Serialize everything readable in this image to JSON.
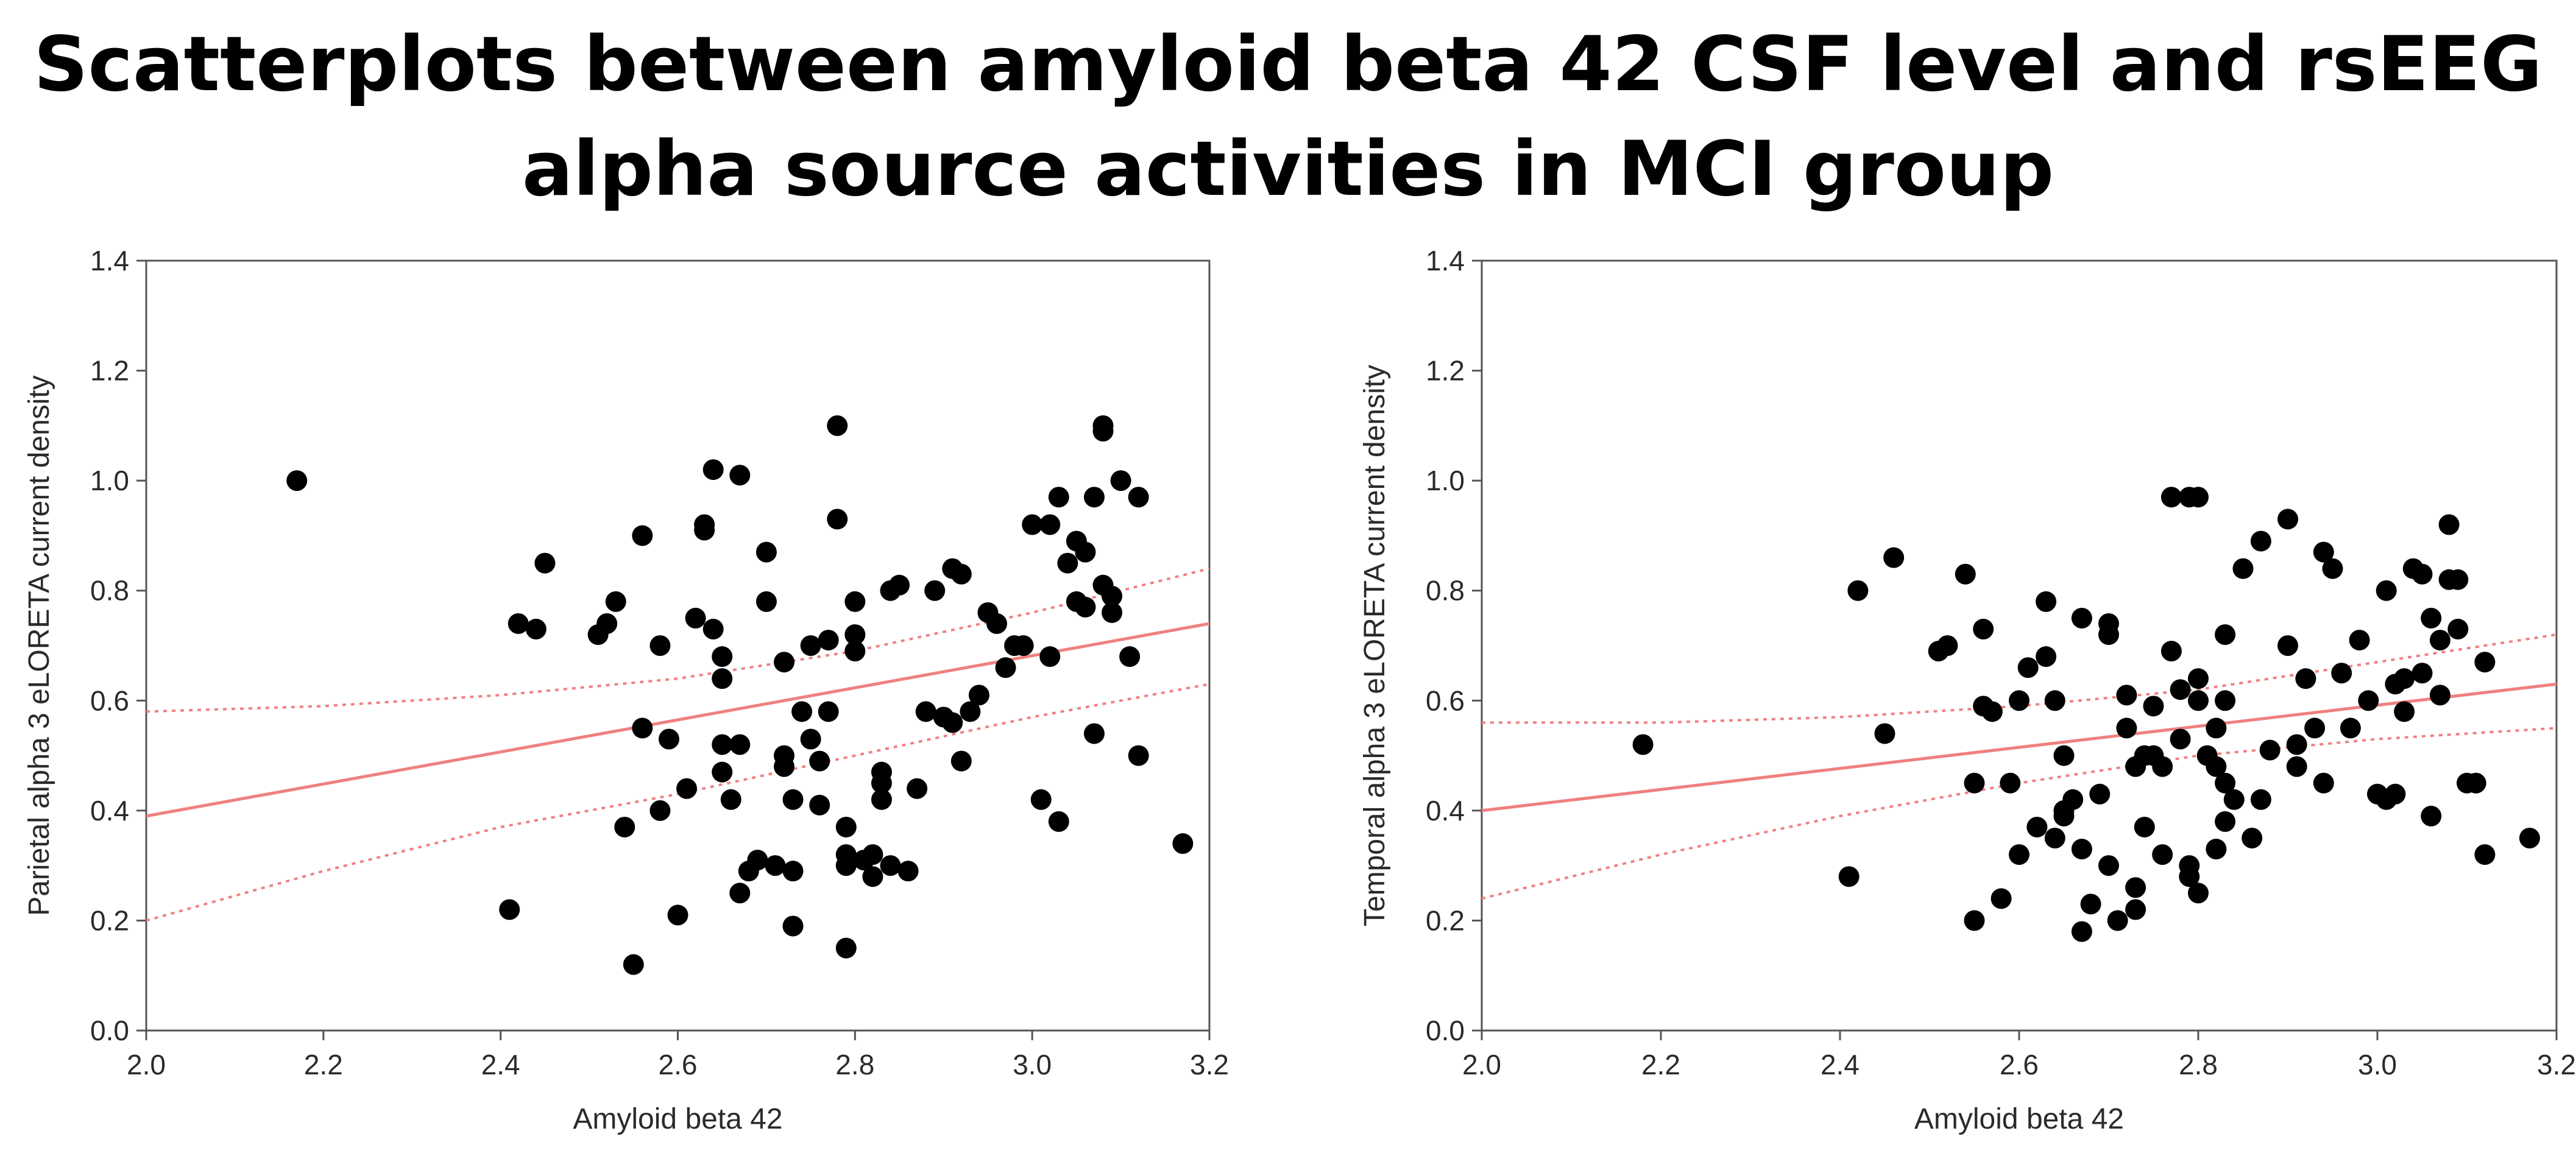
{
  "title_line1": "Scatterplots between amyloid beta 42 CSF level and rsEEG",
  "title_line2": "alpha source activities in MCI group",
  "colors": {
    "points": "#000000",
    "fit": "#f08080",
    "axis": "#555555"
  },
  "chart_data": [
    {
      "type": "scatter",
      "xlabel": "Amyloid beta 42",
      "ylabel": "Parietal alpha 3 eLORETA current density",
      "xlim": [
        2.0,
        3.2
      ],
      "ylim": [
        0.0,
        1.4
      ],
      "xticks": [
        2.0,
        2.2,
        2.4,
        2.6,
        2.8,
        3.0,
        3.2
      ],
      "yticks": [
        0.0,
        0.2,
        0.4,
        0.6,
        0.8,
        1.0,
        1.2,
        1.4
      ],
      "xtick_labels": [
        "2.0",
        "2.2",
        "2.4",
        "2.6",
        "2.8",
        "3.0",
        "3.2"
      ],
      "ytick_labels": [
        "0.0",
        "0.2",
        "0.4",
        "0.6",
        "0.8",
        "1.0",
        "1.2",
        "1.4"
      ],
      "grid": false,
      "regression": {
        "x": [
          2.0,
          3.2
        ],
        "y": [
          0.39,
          0.74
        ]
      },
      "confidence_band": {
        "x": [
          2.0,
          2.2,
          2.4,
          2.6,
          2.8,
          3.0,
          3.2
        ],
        "upper": [
          0.58,
          0.59,
          0.61,
          0.64,
          0.69,
          0.76,
          0.84
        ],
        "lower": [
          0.2,
          0.29,
          0.37,
          0.43,
          0.5,
          0.57,
          0.63
        ]
      },
      "points": [
        [
          2.17,
          1.0
        ],
        [
          2.41,
          0.22
        ],
        [
          2.42,
          0.74
        ],
        [
          2.44,
          0.73
        ],
        [
          2.45,
          0.85
        ],
        [
          2.51,
          0.72
        ],
        [
          2.52,
          0.74
        ],
        [
          2.53,
          0.78
        ],
        [
          2.54,
          0.37
        ],
        [
          2.55,
          0.12
        ],
        [
          2.56,
          0.9
        ],
        [
          2.56,
          0.55
        ],
        [
          2.58,
          0.7
        ],
        [
          2.58,
          0.4
        ],
        [
          2.59,
          0.53
        ],
        [
          2.6,
          0.21
        ],
        [
          2.61,
          0.44
        ],
        [
          2.62,
          0.75
        ],
        [
          2.63,
          0.91
        ],
        [
          2.63,
          0.92
        ],
        [
          2.64,
          1.02
        ],
        [
          2.64,
          0.73
        ],
        [
          2.65,
          0.64
        ],
        [
          2.65,
          0.68
        ],
        [
          2.65,
          0.52
        ],
        [
          2.65,
          0.47
        ],
        [
          2.66,
          0.42
        ],
        [
          2.67,
          1.01
        ],
        [
          2.67,
          0.52
        ],
        [
          2.67,
          0.25
        ],
        [
          2.68,
          0.29
        ],
        [
          2.69,
          0.31
        ],
        [
          2.7,
          0.87
        ],
        [
          2.7,
          0.78
        ],
        [
          2.71,
          0.3
        ],
        [
          2.72,
          0.67
        ],
        [
          2.72,
          0.5
        ],
        [
          2.72,
          0.48
        ],
        [
          2.73,
          0.42
        ],
        [
          2.73,
          0.19
        ],
        [
          2.73,
          0.29
        ],
        [
          2.74,
          0.58
        ],
        [
          2.75,
          0.7
        ],
        [
          2.75,
          0.53
        ],
        [
          2.76,
          0.49
        ],
        [
          2.76,
          0.41
        ],
        [
          2.77,
          0.58
        ],
        [
          2.77,
          0.71
        ],
        [
          2.78,
          1.1
        ],
        [
          2.78,
          0.93
        ],
        [
          2.79,
          0.37
        ],
        [
          2.79,
          0.32
        ],
        [
          2.79,
          0.3
        ],
        [
          2.79,
          0.15
        ],
        [
          2.8,
          0.72
        ],
        [
          2.8,
          0.69
        ],
        [
          2.8,
          0.78
        ],
        [
          2.81,
          0.31
        ],
        [
          2.82,
          0.32
        ],
        [
          2.82,
          0.28
        ],
        [
          2.83,
          0.42
        ],
        [
          2.83,
          0.45
        ],
        [
          2.83,
          0.47
        ],
        [
          2.84,
          0.8
        ],
        [
          2.84,
          0.3
        ],
        [
          2.85,
          0.81
        ],
        [
          2.86,
          0.29
        ],
        [
          2.87,
          0.44
        ],
        [
          2.88,
          0.58
        ],
        [
          2.89,
          0.8
        ],
        [
          2.9,
          0.57
        ],
        [
          2.91,
          0.84
        ],
        [
          2.91,
          0.56
        ],
        [
          2.92,
          0.83
        ],
        [
          2.92,
          0.49
        ],
        [
          2.93,
          0.58
        ],
        [
          2.94,
          0.61
        ],
        [
          2.95,
          0.76
        ],
        [
          2.96,
          0.74
        ],
        [
          2.97,
          0.66
        ],
        [
          2.98,
          0.7
        ],
        [
          2.99,
          0.7
        ],
        [
          3.0,
          0.92
        ],
        [
          3.01,
          0.42
        ],
        [
          3.02,
          0.92
        ],
        [
          3.02,
          0.68
        ],
        [
          3.03,
          0.97
        ],
        [
          3.03,
          0.38
        ],
        [
          3.04,
          0.85
        ],
        [
          3.05,
          0.89
        ],
        [
          3.05,
          0.78
        ],
        [
          3.06,
          0.77
        ],
        [
          3.06,
          0.87
        ],
        [
          3.07,
          0.97
        ],
        [
          3.07,
          0.54
        ],
        [
          3.08,
          1.09
        ],
        [
          3.08,
          1.1
        ],
        [
          3.08,
          0.81
        ],
        [
          3.09,
          0.79
        ],
        [
          3.09,
          0.76
        ],
        [
          3.1,
          1.0
        ],
        [
          3.11,
          0.68
        ],
        [
          3.12,
          0.97
        ],
        [
          3.12,
          0.5
        ],
        [
          3.17,
          0.34
        ]
      ]
    },
    {
      "type": "scatter",
      "xlabel": "Amyloid beta 42",
      "ylabel": "Temporal alpha 3 eLORETA current density",
      "xlim": [
        2.0,
        3.2
      ],
      "ylim": [
        0.0,
        1.4
      ],
      "xticks": [
        2.0,
        2.2,
        2.4,
        2.6,
        2.8,
        3.0,
        3.2
      ],
      "yticks": [
        0.0,
        0.2,
        0.4,
        0.6,
        0.8,
        1.0,
        1.2,
        1.4
      ],
      "xtick_labels": [
        "2.0",
        "2.2",
        "2.4",
        "2.6",
        "2.8",
        "3.0",
        "3.2"
      ],
      "ytick_labels": [
        "0.0",
        "0.2",
        "0.4",
        "0.6",
        "0.8",
        "1.0",
        "1.2",
        "1.4"
      ],
      "grid": false,
      "regression": {
        "x": [
          2.0,
          3.2
        ],
        "y": [
          0.4,
          0.63
        ]
      },
      "confidence_band": {
        "x": [
          2.0,
          2.2,
          2.4,
          2.6,
          2.8,
          3.0,
          3.2
        ],
        "upper": [
          0.56,
          0.56,
          0.57,
          0.59,
          0.62,
          0.67,
          0.72
        ],
        "lower": [
          0.24,
          0.32,
          0.39,
          0.45,
          0.5,
          0.53,
          0.55
        ]
      },
      "points": [
        [
          2.18,
          0.52
        ],
        [
          2.41,
          0.28
        ],
        [
          2.42,
          0.8
        ],
        [
          2.45,
          0.54
        ],
        [
          2.46,
          0.86
        ],
        [
          2.51,
          0.69
        ],
        [
          2.52,
          0.7
        ],
        [
          2.54,
          0.83
        ],
        [
          2.55,
          0.45
        ],
        [
          2.55,
          0.2
        ],
        [
          2.56,
          0.73
        ],
        [
          2.56,
          0.59
        ],
        [
          2.57,
          0.58
        ],
        [
          2.58,
          0.24
        ],
        [
          2.59,
          0.45
        ],
        [
          2.6,
          0.6
        ],
        [
          2.6,
          0.32
        ],
        [
          2.61,
          0.66
        ],
        [
          2.62,
          0.37
        ],
        [
          2.63,
          0.78
        ],
        [
          2.63,
          0.68
        ],
        [
          2.64,
          0.6
        ],
        [
          2.64,
          0.35
        ],
        [
          2.65,
          0.4
        ],
        [
          2.65,
          0.5
        ],
        [
          2.65,
          0.39
        ],
        [
          2.66,
          0.42
        ],
        [
          2.67,
          0.75
        ],
        [
          2.67,
          0.18
        ],
        [
          2.67,
          0.33
        ],
        [
          2.68,
          0.23
        ],
        [
          2.69,
          0.43
        ],
        [
          2.7,
          0.74
        ],
        [
          2.7,
          0.72
        ],
        [
          2.7,
          0.3
        ],
        [
          2.71,
          0.2
        ],
        [
          2.72,
          0.55
        ],
        [
          2.72,
          0.61
        ],
        [
          2.73,
          0.48
        ],
        [
          2.73,
          0.26
        ],
        [
          2.73,
          0.22
        ],
        [
          2.74,
          0.5
        ],
        [
          2.74,
          0.37
        ],
        [
          2.75,
          0.59
        ],
        [
          2.75,
          0.5
        ],
        [
          2.76,
          0.32
        ],
        [
          2.76,
          0.48
        ],
        [
          2.77,
          0.69
        ],
        [
          2.77,
          0.97
        ],
        [
          2.78,
          0.62
        ],
        [
          2.78,
          0.53
        ],
        [
          2.79,
          0.97
        ],
        [
          2.79,
          0.3
        ],
        [
          2.79,
          0.28
        ],
        [
          2.8,
          0.64
        ],
        [
          2.8,
          0.6
        ],
        [
          2.8,
          0.97
        ],
        [
          2.8,
          0.25
        ],
        [
          2.81,
          0.5
        ],
        [
          2.82,
          0.55
        ],
        [
          2.82,
          0.48
        ],
        [
          2.82,
          0.33
        ],
        [
          2.83,
          0.72
        ],
        [
          2.83,
          0.6
        ],
        [
          2.83,
          0.38
        ],
        [
          2.83,
          0.45
        ],
        [
          2.84,
          0.42
        ],
        [
          2.85,
          0.84
        ],
        [
          2.86,
          0.35
        ],
        [
          2.87,
          0.42
        ],
        [
          2.87,
          0.89
        ],
        [
          2.88,
          0.51
        ],
        [
          2.9,
          0.7
        ],
        [
          2.9,
          0.93
        ],
        [
          2.91,
          0.52
        ],
        [
          2.91,
          0.48
        ],
        [
          2.92,
          0.64
        ],
        [
          2.93,
          0.55
        ],
        [
          2.94,
          0.87
        ],
        [
          2.94,
          0.45
        ],
        [
          2.95,
          0.84
        ],
        [
          2.96,
          0.65
        ],
        [
          2.97,
          0.55
        ],
        [
          2.98,
          0.71
        ],
        [
          2.99,
          0.6
        ],
        [
          3.0,
          0.43
        ],
        [
          3.01,
          0.8
        ],
        [
          3.01,
          0.42
        ],
        [
          3.02,
          0.63
        ],
        [
          3.02,
          0.43
        ],
        [
          3.03,
          0.58
        ],
        [
          3.03,
          0.64
        ],
        [
          3.04,
          0.84
        ],
        [
          3.05,
          0.83
        ],
        [
          3.05,
          0.65
        ],
        [
          3.06,
          0.75
        ],
        [
          3.06,
          0.39
        ],
        [
          3.07,
          0.71
        ],
        [
          3.07,
          0.61
        ],
        [
          3.08,
          0.92
        ],
        [
          3.08,
          0.82
        ],
        [
          3.09,
          0.73
        ],
        [
          3.09,
          0.82
        ],
        [
          3.1,
          0.45
        ],
        [
          3.11,
          0.45
        ],
        [
          3.12,
          0.67
        ],
        [
          3.12,
          0.32
        ],
        [
          3.17,
          0.35
        ]
      ]
    }
  ]
}
